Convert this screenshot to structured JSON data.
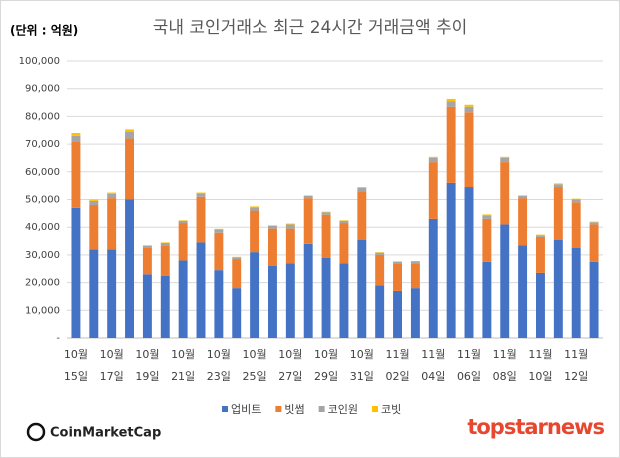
{
  "chart_data": {
    "type": "stacked-bar",
    "title": "국내 코인거래소 최근 24시간 거래금액 추이",
    "unit_label": "(단위 : 억원)",
    "categories": [
      [
        "10월",
        "15일"
      ],
      null,
      [
        "10월",
        "17일"
      ],
      null,
      [
        "10월",
        "19일"
      ],
      null,
      [
        "10월",
        "21일"
      ],
      null,
      [
        "10월",
        "23일"
      ],
      null,
      [
        "10월",
        "25일"
      ],
      null,
      [
        "10월",
        "27일"
      ],
      null,
      [
        "10월",
        "29일"
      ],
      null,
      [
        "10월",
        "31일"
      ],
      null,
      [
        "11월",
        "02일"
      ],
      null,
      [
        "11월",
        "04일"
      ],
      null,
      [
        "11월",
        "06일"
      ],
      null,
      [
        "11월",
        "08일"
      ],
      null,
      [
        "11월",
        "10일"
      ],
      null,
      [
        "11월",
        "12일"
      ],
      null
    ],
    "series": [
      {
        "name": "업비트",
        "color": "#4472c4",
        "values": [
          47000,
          32000,
          32000,
          50000,
          23000,
          22500,
          28000,
          34500,
          24500,
          18000,
          31000,
          26000,
          27000,
          34000,
          29000,
          27000,
          35500,
          19000,
          17000,
          18000,
          43000,
          56000,
          54500,
          27500,
          41000,
          33500,
          23500,
          35500,
          32500,
          27500
        ]
      },
      {
        "name": "빗썸",
        "color": "#ed7d31",
        "values": [
          24000,
          16000,
          18500,
          22000,
          9500,
          11000,
          13500,
          16500,
          13500,
          10500,
          15000,
          13500,
          12500,
          16500,
          15500,
          14500,
          17500,
          11000,
          10000,
          9000,
          20500,
          27500,
          27000,
          15500,
          22500,
          17000,
          13000,
          19000,
          16500,
          13500
        ]
      },
      {
        "name": "코인원",
        "color": "#a5a5a5",
        "values": [
          2000,
          1500,
          1500,
          2500,
          800,
          800,
          800,
          1200,
          1200,
          600,
          1200,
          1000,
          1500,
          800,
          900,
          800,
          1200,
          800,
          500,
          600,
          1500,
          2000,
          2000,
          1300,
          1500,
          800,
          600,
          1000,
          1000,
          800
        ]
      },
      {
        "name": "코빗",
        "color": "#ffc000",
        "values": [
          1000,
          500,
          500,
          800,
          200,
          200,
          200,
          300,
          200,
          200,
          300,
          200,
          300,
          200,
          200,
          200,
          300,
          200,
          200,
          200,
          400,
          800,
          700,
          300,
          400,
          200,
          200,
          300,
          300,
          200
        ]
      }
    ],
    "ylim": [
      0,
      100000
    ],
    "yticks": [
      {
        "value": 0,
        "label": "-"
      },
      {
        "value": 10000,
        "label": "10,000"
      },
      {
        "value": 20000,
        "label": "20,000"
      },
      {
        "value": 30000,
        "label": "30,000"
      },
      {
        "value": 40000,
        "label": "40,000"
      },
      {
        "value": 50000,
        "label": "50,000"
      },
      {
        "value": 60000,
        "label": "60,000"
      },
      {
        "value": 70000,
        "label": "70,000"
      },
      {
        "value": 80000,
        "label": "80,000"
      },
      {
        "value": 90000,
        "label": "90,000"
      },
      {
        "value": 100000,
        "label": "100,000"
      }
    ],
    "grid": true
  },
  "logos": {
    "source": "CoinMarketCap",
    "watermark": "topstarnews"
  }
}
